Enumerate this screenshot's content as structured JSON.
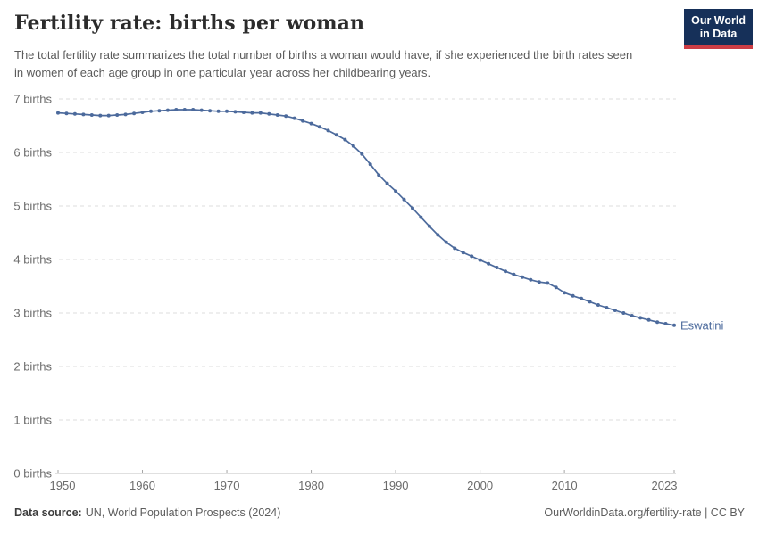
{
  "header": {
    "title": "Fertility rate: births per woman",
    "subtitle": "The total fertility rate summarizes the total number of births a woman would have, if she experienced the birth rates seen in women of each age group in one particular year across her childbearing years.",
    "logo": {
      "line1": "Our World",
      "line2": "in Data",
      "bg_color": "#163059",
      "accent_color": "#cd3d45"
    }
  },
  "chart_data": {
    "type": "line",
    "title": "Fertility rate: births per woman",
    "entity_label": "Eswatini",
    "xlabel": "",
    "ylabel": "births per woman",
    "xlim": [
      1950,
      2023
    ],
    "ylim": [
      0,
      7
    ],
    "grid": "dashed horizontal",
    "legend_position": "end-of-line label",
    "x_ticks": [
      1950,
      1960,
      1970,
      1980,
      1990,
      2000,
      2010,
      2023
    ],
    "y_ticks": [
      0,
      1,
      2,
      3,
      4,
      5,
      6,
      7
    ],
    "y_tick_format": "{v} births",
    "series": [
      {
        "name": "Eswatini",
        "color": "#4c6a9c",
        "x_start": 1950,
        "x_step": 1,
        "values": [
          6.74,
          6.73,
          6.72,
          6.71,
          6.7,
          6.69,
          6.69,
          6.7,
          6.71,
          6.73,
          6.75,
          6.77,
          6.78,
          6.79,
          6.8,
          6.8,
          6.8,
          6.79,
          6.78,
          6.77,
          6.77,
          6.76,
          6.75,
          6.74,
          6.74,
          6.72,
          6.7,
          6.68,
          6.64,
          6.59,
          6.54,
          6.48,
          6.41,
          6.33,
          6.24,
          6.12,
          5.97,
          5.78,
          5.58,
          5.42,
          5.28,
          5.12,
          4.96,
          4.79,
          4.62,
          4.46,
          4.32,
          4.21,
          4.13,
          4.06,
          3.99,
          3.92,
          3.85,
          3.78,
          3.72,
          3.67,
          3.62,
          3.58,
          3.56,
          3.48,
          3.38,
          3.32,
          3.27,
          3.21,
          3.15,
          3.1,
          3.05,
          3.0,
          2.95,
          2.91,
          2.87,
          2.83,
          2.8,
          2.77
        ]
      }
    ],
    "colors": {
      "line": "#4c6a9c",
      "gridline": "#dedede",
      "axis_line": "#c0c0c0",
      "tick_mark": "#a5a5a5",
      "tick_text": "#6b6b6b"
    }
  },
  "footer": {
    "datasource_label": "Data source:",
    "datasource_value": "UN, World Population Prospects (2024)",
    "license": "OurWorldinData.org/fertility-rate | CC BY"
  }
}
